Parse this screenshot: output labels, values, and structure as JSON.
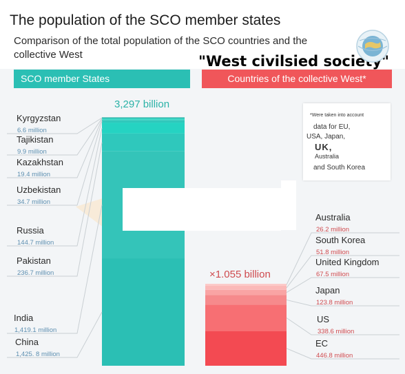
{
  "header": {
    "title": "The population of the SCO member states",
    "subtitle": "Comparison of the total population of the SCO countries and the collective West",
    "overlay_caption": "\"West civilsied society\""
  },
  "logo": {
    "icon": "sco-globe-logo-icon"
  },
  "colors": {
    "sco": "#2bbfb4",
    "west": "#f0565a",
    "sco_label": "#2bb2a7",
    "west_label": "#cf4a4e"
  },
  "note": {
    "line1": "*Were taken into account",
    "line2": "data for EU,",
    "line3": "USA, Japan,",
    "line4": "UK,",
    "line5": "Australia",
    "line6": "and South Korea"
  },
  "chart_data": {
    "type": "bar",
    "stacked": true,
    "units": "million",
    "groups": [
      {
        "banner": "SCO member States",
        "total_label": "3,297 billion",
        "segments": [
          {
            "name": "China",
            "label": "China",
            "value": 1425.8,
            "value_label": "1,425. 8 million"
          },
          {
            "name": "India",
            "label": "India",
            "value": 1419.1,
            "value_label": "1,419.1 million"
          },
          {
            "name": "Pakistan",
            "label": "Pakistan",
            "value": 236.7,
            "value_label": "236.7 million"
          },
          {
            "name": "Russia",
            "label": "Russia",
            "value": 144.7,
            "value_label": "144.7 million"
          },
          {
            "name": "Uzbekistan",
            "label": "Uzbekistan",
            "value": 34.7,
            "value_label": "34.7 million"
          },
          {
            "name": "Kazakhstan",
            "label": "Kazakhstan",
            "value": 19.4,
            "value_label": "19.4 million"
          },
          {
            "name": "Tajikistan",
            "label": "Tajikistan",
            "value": 9.9,
            "value_label": "9.9 million"
          },
          {
            "name": "Kyrgyzstan",
            "label": "Kyrgyzstan",
            "value": 6.6,
            "value_label": "6.6 million"
          }
        ]
      },
      {
        "banner": "Countries of the collective West*",
        "total_label": "×1.055 billion",
        "segments": [
          {
            "name": "EC",
            "label": "EC",
            "value": 446.8,
            "value_label": "446.8 million"
          },
          {
            "name": "US",
            "label": "US",
            "value": 338.6,
            "value_label": "338.6 million"
          },
          {
            "name": "Japan",
            "label": "Japan",
            "value": 123.8,
            "value_label": "123.8 million"
          },
          {
            "name": "United Kingdom",
            "label": "United Kingdom",
            "value": 67.5,
            "value_label": "67.5 million"
          },
          {
            "name": "South Korea",
            "label": "South Korea",
            "value": 51.8,
            "value_label": "51.8 million"
          },
          {
            "name": "Australia",
            "label": "Australia",
            "value": 26.2,
            "value_label": "26.2 million"
          }
        ]
      }
    ]
  }
}
